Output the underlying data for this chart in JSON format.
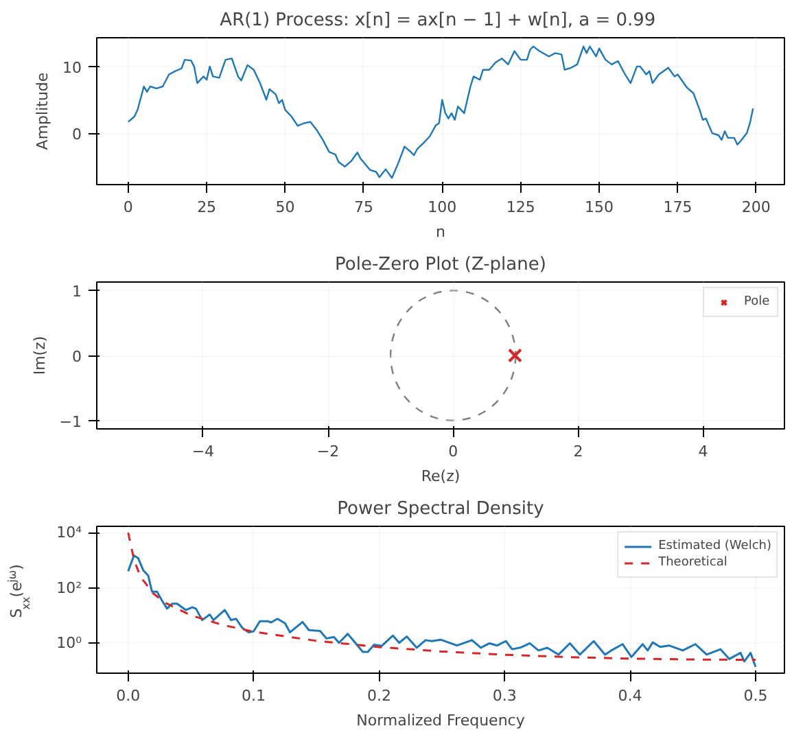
{
  "chart_data": [
    {
      "type": "line",
      "title": "AR(1) Process: x[n] = ax[n − 1] + w[n],  a = 0.99",
      "xlabel": "n",
      "ylabel": "Amplitude",
      "x": [
        0,
        2,
        3,
        5,
        6,
        7,
        9,
        11,
        13,
        15,
        17,
        18,
        20,
        21,
        22,
        24,
        25,
        26,
        27,
        29,
        31,
        33,
        35,
        36,
        38,
        40,
        42,
        44,
        45,
        47,
        48,
        49,
        50,
        52,
        54,
        56,
        58,
        60,
        62,
        64,
        66,
        67,
        69,
        71,
        73,
        74,
        77,
        79,
        80,
        82,
        84,
        86,
        88,
        90,
        91,
        92,
        94,
        96,
        98,
        99,
        100,
        101,
        102,
        103,
        104,
        105,
        107,
        109,
        110,
        112,
        113,
        115,
        117,
        119,
        121,
        123,
        125,
        127,
        128,
        129,
        131,
        134,
        136,
        138,
        139,
        141,
        143,
        145,
        146,
        147,
        149,
        150,
        152,
        154,
        156,
        158,
        160,
        162,
        163,
        165,
        166,
        167,
        169,
        172,
        174,
        175,
        178,
        180,
        182,
        183,
        184,
        186,
        188,
        189,
        190,
        191,
        193,
        194,
        195,
        197,
        198,
        199
      ],
      "series": [
        {
          "color": "#1f77b4",
          "values": [
            1.7,
            2.5,
            3.5,
            7,
            6.2,
            7,
            6.7,
            7,
            8.8,
            9.3,
            9.7,
            11,
            10.9,
            10,
            7.5,
            8.5,
            8,
            10,
            8.5,
            8.3,
            11,
            11.2,
            8.5,
            7.9,
            10.2,
            9.5,
            7.5,
            5,
            6.6,
            5.8,
            4.5,
            5,
            3.5,
            2.5,
            1.1,
            1.5,
            1.7,
            0.5,
            -1,
            -2.8,
            -3.2,
            -4.3,
            -5,
            -4.2,
            -2.9,
            -3.8,
            -5.5,
            -5.8,
            -6.6,
            -5.4,
            -6.7,
            -4.5,
            -2,
            -2.8,
            -3.3,
            -2.4,
            -1.5,
            -0.5,
            1.2,
            1.5,
            5,
            3,
            2.2,
            3,
            2,
            4,
            3,
            7,
            8.5,
            8,
            9.5,
            9.5,
            10.6,
            11.2,
            10.3,
            12.3,
            11,
            11,
            12.5,
            13,
            12.3,
            11.5,
            12,
            11.8,
            9.5,
            9.8,
            10.3,
            13,
            12,
            13,
            11.5,
            12.7,
            11,
            10.3,
            10.8,
            9,
            7.5,
            10,
            10,
            8.8,
            9.3,
            7.5,
            8.8,
            9.8,
            8.5,
            8.8,
            6.8,
            6,
            3.5,
            2,
            2.2,
            0,
            -0.3,
            -1,
            0.3,
            -0.7,
            -0.7,
            -1.7,
            -1.2,
            0,
            1.5,
            3.7
          ]
        }
      ],
      "xlim": [
        -10,
        209
      ],
      "ylim": [
        -7.7,
        14.3
      ],
      "xticks": [
        0,
        25,
        50,
        75,
        100,
        125,
        150,
        175,
        200
      ],
      "yticks": [
        0,
        10
      ],
      "grid": true
    },
    {
      "type": "scatter",
      "title": "Pole-Zero Plot (Z-plane)",
      "xlabel": "Re(z)",
      "ylabel": "Im(z)",
      "series": [
        {
          "type": "scatter",
          "name": "Pole",
          "color": "#d62728",
          "marker": "cross",
          "x": [
            0.99
          ],
          "values": [
            0
          ]
        }
      ],
      "xlim": [
        -5.7,
        5.3
      ],
      "ylim": [
        -1.13,
        1.13
      ],
      "xticks": [
        {
          "value": -4,
          "label": "−4"
        },
        {
          "value": -2,
          "label": "−2"
        },
        0,
        2,
        4
      ],
      "yticks": [
        {
          "value": -1,
          "label": "−1"
        },
        0,
        1
      ],
      "grid": true,
      "legend": "top right"
    },
    {
      "type": "line",
      "title": "Power Spectral Density",
      "xlabel": "Normalized Frequency",
      "ylabel": "S$_{xx}$(e$^{jω}$)",
      "log": "y",
      "series": [
        {
          "name": "Estimated (Welch)",
          "color": "#1f77b4",
          "x": [
            0,
            0.0046,
            0.008,
            0.012,
            0.016,
            0.019,
            0.023,
            0.027,
            0.031,
            0.035,
            0.039,
            0.046,
            0.051,
            0.054,
            0.059,
            0.065,
            0.068,
            0.073,
            0.077,
            0.082,
            0.086,
            0.091,
            0.096,
            0.1,
            0.105,
            0.111,
            0.114,
            0.119,
            0.125,
            0.129,
            0.139,
            0.144,
            0.153,
            0.158,
            0.164,
            0.168,
            0.175,
            0.181,
            0.187,
            0.191,
            0.196,
            0.202,
            0.211,
            0.216,
            0.222,
            0.23,
            0.237,
            0.242,
            0.249,
            0.262,
            0.274,
            0.281,
            0.288,
            0.294,
            0.301,
            0.306,
            0.313,
            0.32,
            0.327,
            0.334,
            0.343,
            0.352,
            0.36,
            0.371,
            0.38,
            0.385,
            0.394,
            0.401,
            0.41,
            0.414,
            0.418,
            0.424,
            0.431,
            0.442,
            0.452,
            0.461,
            0.472,
            0.479,
            0.488,
            0.491,
            0.496,
            0.5
          ],
          "values": [
            400,
            1500,
            1200,
            440,
            280,
            74,
            74,
            35,
            18,
            27,
            27,
            16,
            20,
            18,
            6.9,
            11,
            6.9,
            11,
            16,
            6.9,
            7.7,
            3.6,
            2.5,
            2.7,
            6.3,
            6.3,
            5.7,
            7.7,
            5.3,
            2.5,
            5.9,
            3,
            2.8,
            1.5,
            1.7,
            1.04,
            2.2,
            1.04,
            0.49,
            0.49,
            0.89,
            0.8,
            1.9,
            1.04,
            1.76,
            0.69,
            1.3,
            1.2,
            1.35,
            0.83,
            1.3,
            0.69,
            1,
            0.83,
            1.2,
            0.61,
            0.71,
            1,
            0.55,
            0.69,
            0.39,
            1,
            0.39,
            1.2,
            0.39,
            0.55,
            0.93,
            0.32,
            0.93,
            0.55,
            1.08,
            0.74,
            0.83,
            0.55,
            0.93,
            0.39,
            0.61,
            0.27,
            0.45,
            0.22,
            0.45,
            0.14
          ]
        },
        {
          "name": "Theoretical",
          "color": "#d62728",
          "line_style": "dashed",
          "x": [
            0,
            0.005,
            0.01,
            0.02,
            0.03,
            0.05,
            0.075,
            0.1,
            0.15,
            0.2,
            0.25,
            0.3,
            0.35,
            0.4,
            0.45,
            0.5
          ],
          "values": [
            10000,
            929,
            250,
            63.6,
            28.4,
            10.3,
            4.63,
            2.64,
            1.225,
            0.731,
            0.505,
            0.386,
            0.318,
            0.279,
            0.259,
            0.2525
          ]
        }
      ],
      "xlim": [
        -0.025,
        0.523
      ],
      "ylim": [
        0.083,
        17000
      ],
      "xticks": [
        {
          "value": 0,
          "label": "0.0"
        },
        0.1,
        0.2,
        0.3,
        0.4,
        0.5
      ],
      "yticks": [
        {
          "value": 1,
          "label": "10⁰"
        },
        {
          "value": 100,
          "label": "10²"
        },
        {
          "value": 10000,
          "label": "10⁴"
        }
      ],
      "grid": true,
      "legend": "top right"
    }
  ]
}
